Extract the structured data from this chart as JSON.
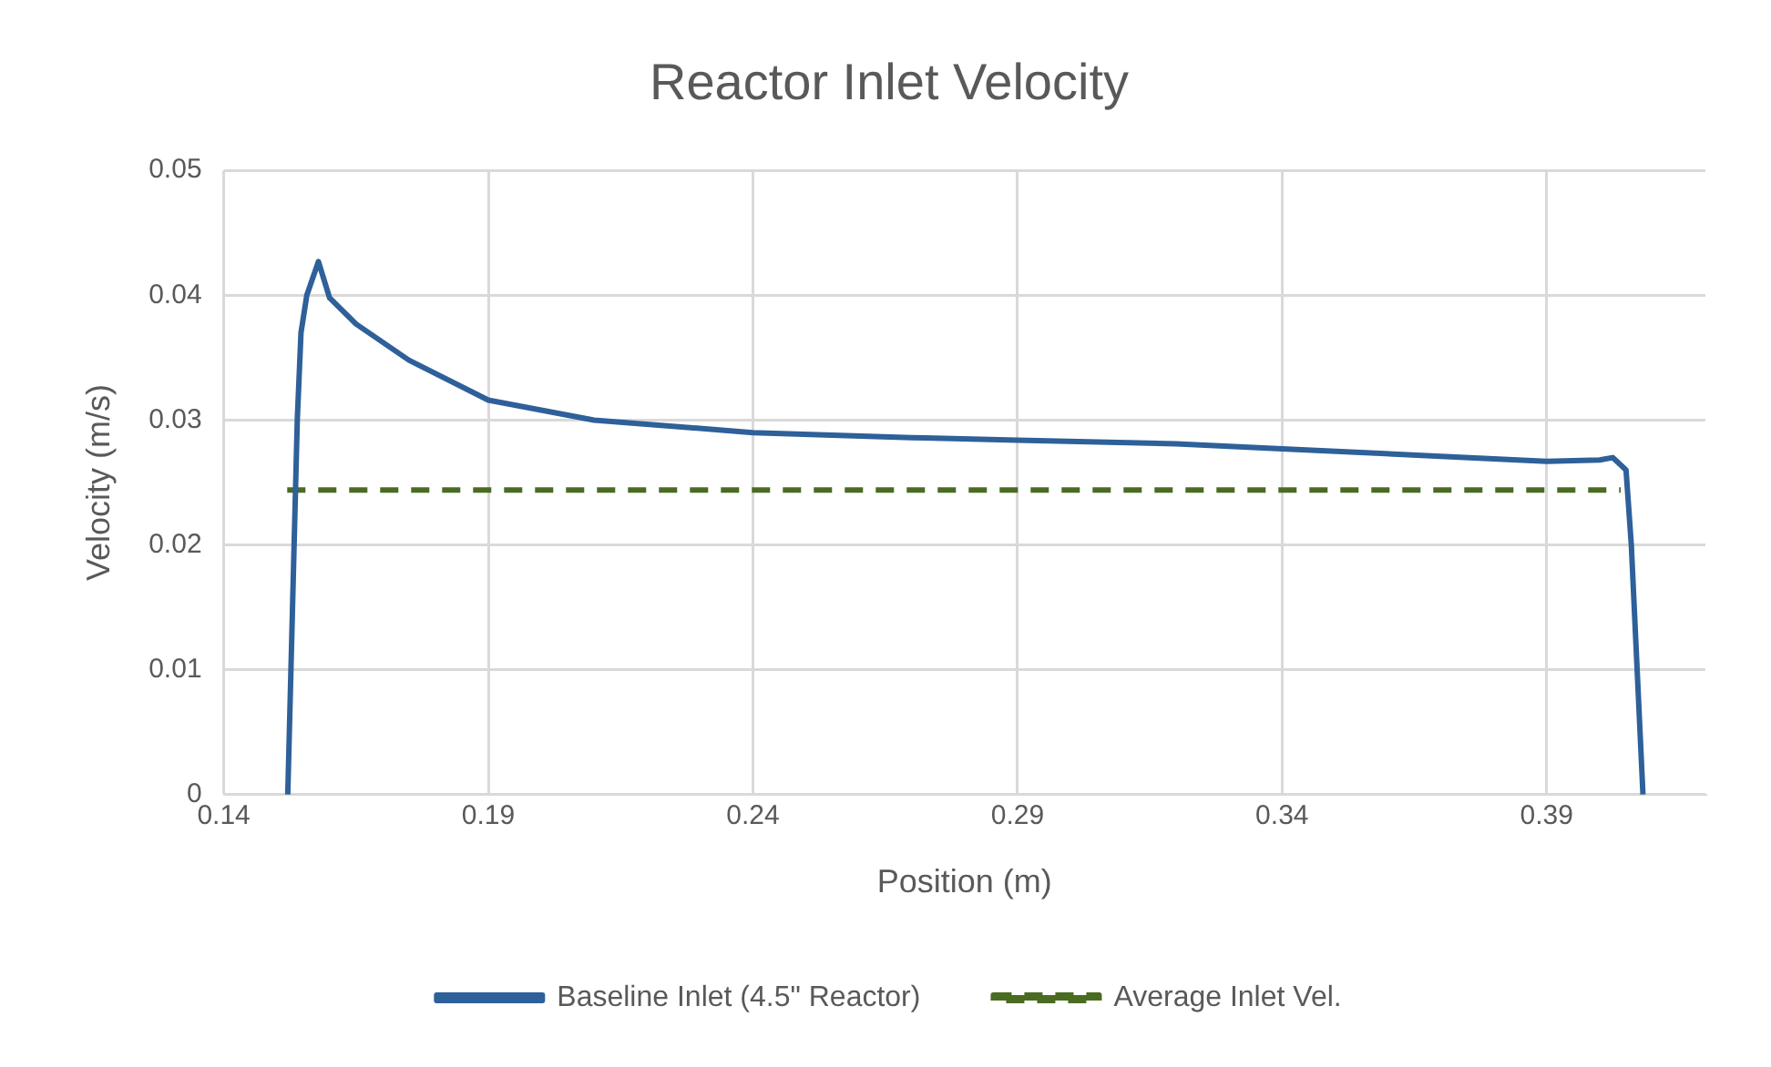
{
  "chart_data": {
    "type": "line",
    "title": "Reactor Inlet Velocity",
    "xlabel": "Position (m)",
    "ylabel": "Velocity (m/s)",
    "xlim": [
      0.14,
      0.42
    ],
    "xticks": [
      0.14,
      0.19,
      0.24,
      0.29,
      0.34,
      0.39
    ],
    "ylim": [
      0,
      0.05
    ],
    "yticks": [
      0,
      0.01,
      0.02,
      0.03,
      0.04,
      0.05
    ],
    "grid": true,
    "legend": "bottom",
    "marker": "none",
    "series": [
      {
        "name": "Baseline Inlet (4.5\" Reactor)",
        "color": "#2e6099",
        "line_style": "solid",
        "x": [
          0.1521,
          0.153,
          0.1539,
          0.1546,
          0.1557,
          0.1579,
          0.16,
          0.165,
          0.175,
          0.19,
          0.21,
          0.24,
          0.27,
          0.29,
          0.32,
          0.34,
          0.37,
          0.39,
          0.4,
          0.4025,
          0.405,
          0.406,
          0.4082
        ],
        "values": [
          0,
          0.015,
          0.03,
          0.037,
          0.04,
          0.0427,
          0.0398,
          0.0377,
          0.0348,
          0.0316,
          0.03,
          0.029,
          0.0286,
          0.0284,
          0.0281,
          0.0277,
          0.0271,
          0.0267,
          0.0268,
          0.027,
          0.026,
          0.02,
          0
        ]
      },
      {
        "name": "Average Inlet Vel.",
        "color": "#4a6b22",
        "line_style": "dashed",
        "x": [
          0.152,
          0.404
        ],
        "values": [
          0.0244,
          0.0244
        ]
      }
    ]
  }
}
